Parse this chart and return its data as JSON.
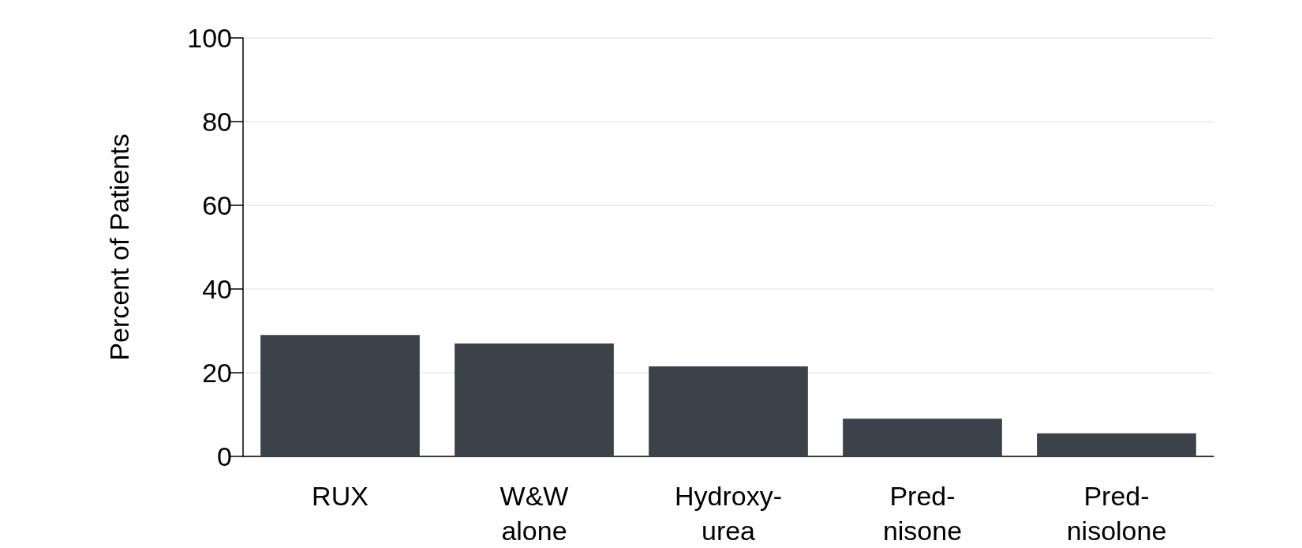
{
  "chart_data": {
    "type": "bar",
    "ylabel": "Percent of Patients",
    "categories": [
      "RUX",
      "W&W\nalone",
      "Hydroxy-\nurea",
      "Pred-\nnisone",
      "Pred-\nnisolone"
    ],
    "values": [
      29,
      27,
      21.5,
      9,
      5.5
    ],
    "color": "#3c4249",
    "ylim": [
      0,
      100
    ],
    "yticks": [
      0,
      20,
      40,
      60,
      80,
      100
    ],
    "grid": "y"
  }
}
